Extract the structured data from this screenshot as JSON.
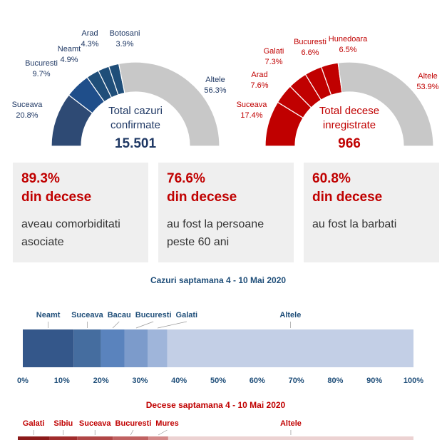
{
  "chart_data": [
    {
      "type": "gauge",
      "center_lines": [
        "Total cazuri",
        "confirmate"
      ],
      "total": "15.501",
      "text_color": "#1f3864",
      "categories": [
        "Suceava",
        "Bucuresti",
        "Neamt",
        "Arad",
        "Botosani",
        "Altele"
      ],
      "values": [
        20.8,
        9.7,
        4.9,
        4.3,
        3.9,
        56.3
      ],
      "value_labels": [
        "20.8%",
        "9.7%",
        "4.9%",
        "4.3%",
        "3.9%",
        "56.3%"
      ],
      "colors": [
        "#2e4a74",
        "#1f4e8a",
        "#1f4e79",
        "#1f4e79",
        "#1f4e79",
        "#c8c8c8"
      ],
      "label_color": "#1f3864"
    },
    {
      "type": "gauge",
      "center_lines": [
        "Total decese",
        "inregistrate"
      ],
      "total": "966",
      "text_color": "#c00000",
      "categories": [
        "Suceava",
        "Arad",
        "Galati",
        "Bucuresti",
        "Hunedoara",
        "Altele"
      ],
      "values": [
        17.4,
        7.6,
        7.3,
        6.6,
        6.5,
        53.9
      ],
      "value_labels": [
        "17.4%",
        "7.6%",
        "7.3%",
        "6.6%",
        "6.5%",
        "53.9%"
      ],
      "colors": [
        "#c00000",
        "#c00000",
        "#c00000",
        "#c00000",
        "#c00000",
        "#c8c8c8"
      ],
      "label_color": "#c00000"
    },
    {
      "type": "stacked_bar",
      "title": "Cazuri saptamana 4 - 10 Mai 2020",
      "categories": [
        "Neamt",
        "Suceava",
        "Bacau",
        "Bucuresti",
        "Galati",
        "Altele"
      ],
      "values": [
        13,
        7,
        6,
        6,
        5,
        63
      ],
      "colors": [
        "#34578a",
        "#456d9f",
        "#5a83bd",
        "#7c9bcb",
        "#9fb5da",
        "#c3cfe6"
      ],
      "label_color": "#1f4e79",
      "xlim": [
        0,
        100
      ],
      "xticks": [
        {
          "value": 0,
          "label": "0%"
        },
        {
          "value": 10,
          "label": "10%"
        },
        {
          "value": 20,
          "label": "20%"
        },
        {
          "value": 30,
          "label": "30%"
        },
        {
          "value": 40,
          "label": "40%"
        },
        {
          "value": 50,
          "label": "50%"
        },
        {
          "value": 60,
          "label": "60%"
        },
        {
          "value": 70,
          "label": "70%"
        },
        {
          "value": 80,
          "label": "80%"
        },
        {
          "value": 90,
          "label": "90%"
        },
        {
          "value": 100,
          "label": "100%"
        }
      ]
    },
    {
      "type": "stacked_bar",
      "title": "Decese saptamana 4 - 10 Mai 2020",
      "categories": [
        "Galati",
        "Sibiu",
        "Suceava",
        "Bucuresti",
        "Mures",
        "Altele"
      ],
      "values": [
        8,
        7,
        9,
        9,
        5,
        62
      ],
      "colors": [
        "#8b1a1a",
        "#a02c2c",
        "#b04646",
        "#c06262",
        "#d48a8a",
        "#ecd2d2"
      ],
      "label_color": "#c00000",
      "xlim": [
        0,
        100
      ]
    }
  ],
  "stats": [
    {
      "value": "89.3%",
      "subtitle": "din decese",
      "text": "aveau comorbiditati asociate"
    },
    {
      "value": "76.6%",
      "subtitle": "din decese",
      "text": "au fost la persoane peste 60 ani"
    },
    {
      "value": "60.8%",
      "subtitle": "din decese",
      "text": "au fost la barbati"
    }
  ]
}
